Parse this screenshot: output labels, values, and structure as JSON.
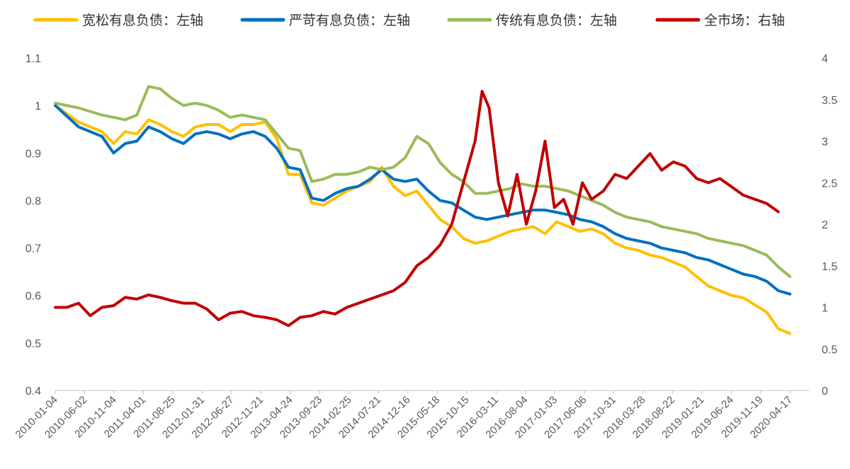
{
  "chart_data": {
    "type": "line",
    "legend_position": "top",
    "grid": false,
    "y_left": {
      "ylim": [
        0.4,
        1.1
      ],
      "ticks": [
        "0.4",
        "0.5",
        "0.6",
        "0.7",
        "0.8",
        "0.9",
        "1",
        "1.1"
      ]
    },
    "y_right": {
      "ylim": [
        0,
        4
      ],
      "ticks": [
        "0",
        "0.5",
        "1",
        "1.5",
        "2",
        "2.5",
        "3",
        "3.5",
        "4"
      ]
    },
    "x_ticks": [
      "2010-01-04",
      "2010-06-02",
      "2010-11-04",
      "2011-04-01",
      "2011-08-25",
      "2012-01-31",
      "2012-06-27",
      "2012-11-21",
      "2013-04-24",
      "2013-09-23",
      "2014-02-25",
      "2014-07-21",
      "2014-12-16",
      "2015-05-18",
      "2015-10-15",
      "2016-03-11",
      "2016-08-04",
      "2017-01-03",
      "2017-06-06",
      "2017-10-31",
      "2018-03-28",
      "2018-08-22",
      "2019-01-21",
      "2019-06-24",
      "2019-11-19",
      "2020-04-17"
    ],
    "series": [
      {
        "name": "宽松有息负债：左轴",
        "axis": "left",
        "color": "#FFC000",
        "points": [
          [
            0,
            1.0
          ],
          [
            1,
            0.965
          ],
          [
            2,
            0.945
          ],
          [
            2.5,
            0.92
          ],
          [
            3,
            0.945
          ],
          [
            3.5,
            0.94
          ],
          [
            4,
            0.97
          ],
          [
            4.5,
            0.96
          ],
          [
            5,
            0.945
          ],
          [
            5.5,
            0.935
          ],
          [
            6,
            0.955
          ],
          [
            6.5,
            0.96
          ],
          [
            7,
            0.96
          ],
          [
            7.5,
            0.945
          ],
          [
            8,
            0.96
          ],
          [
            8.5,
            0.96
          ],
          [
            9,
            0.965
          ],
          [
            9.5,
            0.93
          ],
          [
            10,
            0.855
          ],
          [
            10.5,
            0.855
          ],
          [
            11,
            0.795
          ],
          [
            11.5,
            0.79
          ],
          [
            12,
            0.805
          ],
          [
            12.5,
            0.82
          ],
          [
            13,
            0.83
          ],
          [
            13.5,
            0.84
          ],
          [
            14,
            0.87
          ],
          [
            14.5,
            0.83
          ],
          [
            15,
            0.81
          ],
          [
            15.5,
            0.82
          ],
          [
            16,
            0.79
          ],
          [
            16.5,
            0.76
          ],
          [
            17,
            0.745
          ],
          [
            17.5,
            0.72
          ],
          [
            18,
            0.71
          ],
          [
            18.5,
            0.715
          ],
          [
            19,
            0.725
          ],
          [
            19.5,
            0.735
          ],
          [
            20,
            0.74
          ],
          [
            20.5,
            0.745
          ],
          [
            21,
            0.73
          ],
          [
            21.5,
            0.755
          ],
          [
            22,
            0.745
          ],
          [
            22.5,
            0.735
          ],
          [
            23,
            0.74
          ],
          [
            23.5,
            0.73
          ],
          [
            24,
            0.71
          ],
          [
            24.5,
            0.7
          ],
          [
            25,
            0.695
          ],
          [
            25.5,
            0.685
          ],
          [
            26,
            0.68
          ],
          [
            26.5,
            0.67
          ],
          [
            27,
            0.66
          ],
          [
            27.5,
            0.64
          ],
          [
            28,
            0.62
          ],
          [
            28.5,
            0.61
          ],
          [
            29,
            0.6
          ],
          [
            29.5,
            0.595
          ],
          [
            30,
            0.58
          ],
          [
            30.5,
            0.565
          ],
          [
            31,
            0.53
          ],
          [
            31.5,
            0.52
          ]
        ]
      },
      {
        "name": "严苛有息负债：左轴",
        "axis": "left",
        "color": "#0070C0",
        "points": [
          [
            0,
            1.0
          ],
          [
            1,
            0.955
          ],
          [
            2,
            0.935
          ],
          [
            2.5,
            0.9
          ],
          [
            3,
            0.92
          ],
          [
            3.5,
            0.925
          ],
          [
            4,
            0.955
          ],
          [
            4.5,
            0.945
          ],
          [
            5,
            0.93
          ],
          [
            5.5,
            0.92
          ],
          [
            6,
            0.94
          ],
          [
            6.5,
            0.945
          ],
          [
            7,
            0.94
          ],
          [
            7.5,
            0.93
          ],
          [
            8,
            0.94
          ],
          [
            8.5,
            0.945
          ],
          [
            9,
            0.935
          ],
          [
            9.5,
            0.91
          ],
          [
            10,
            0.87
          ],
          [
            10.5,
            0.865
          ],
          [
            11,
            0.805
          ],
          [
            11.5,
            0.8
          ],
          [
            12,
            0.815
          ],
          [
            12.5,
            0.825
          ],
          [
            13,
            0.83
          ],
          [
            13.5,
            0.845
          ],
          [
            14,
            0.865
          ],
          [
            14.5,
            0.845
          ],
          [
            15,
            0.84
          ],
          [
            15.5,
            0.845
          ],
          [
            16,
            0.82
          ],
          [
            16.5,
            0.8
          ],
          [
            17,
            0.795
          ],
          [
            17.5,
            0.78
          ],
          [
            18,
            0.765
          ],
          [
            18.5,
            0.76
          ],
          [
            19,
            0.765
          ],
          [
            19.5,
            0.77
          ],
          [
            20,
            0.775
          ],
          [
            20.5,
            0.78
          ],
          [
            21,
            0.78
          ],
          [
            21.5,
            0.775
          ],
          [
            22,
            0.77
          ],
          [
            22.5,
            0.76
          ],
          [
            23,
            0.755
          ],
          [
            23.5,
            0.745
          ],
          [
            24,
            0.73
          ],
          [
            24.5,
            0.72
          ],
          [
            25,
            0.715
          ],
          [
            25.5,
            0.71
          ],
          [
            26,
            0.7
          ],
          [
            26.5,
            0.695
          ],
          [
            27,
            0.69
          ],
          [
            27.5,
            0.68
          ],
          [
            28,
            0.675
          ],
          [
            28.5,
            0.665
          ],
          [
            29,
            0.655
          ],
          [
            29.5,
            0.645
          ],
          [
            30,
            0.64
          ],
          [
            30.5,
            0.63
          ],
          [
            31,
            0.61
          ],
          [
            31.5,
            0.603
          ]
        ]
      },
      {
        "name": "传统有息负债：左轴",
        "axis": "left",
        "color": "#9BBB59",
        "points": [
          [
            0,
            1.005
          ],
          [
            1,
            0.995
          ],
          [
            2,
            0.98
          ],
          [
            2.5,
            0.975
          ],
          [
            3,
            0.97
          ],
          [
            3.5,
            0.98
          ],
          [
            4,
            1.04
          ],
          [
            4.5,
            1.035
          ],
          [
            5,
            1.015
          ],
          [
            5.5,
            1.0
          ],
          [
            6,
            1.005
          ],
          [
            6.5,
            1.0
          ],
          [
            7,
            0.99
          ],
          [
            7.5,
            0.975
          ],
          [
            8,
            0.98
          ],
          [
            8.5,
            0.975
          ],
          [
            9,
            0.97
          ],
          [
            9.5,
            0.94
          ],
          [
            10,
            0.91
          ],
          [
            10.5,
            0.905
          ],
          [
            11,
            0.84
          ],
          [
            11.5,
            0.845
          ],
          [
            12,
            0.855
          ],
          [
            12.5,
            0.855
          ],
          [
            13,
            0.86
          ],
          [
            13.5,
            0.87
          ],
          [
            14,
            0.865
          ],
          [
            14.5,
            0.87
          ],
          [
            15,
            0.89
          ],
          [
            15.5,
            0.935
          ],
          [
            16,
            0.92
          ],
          [
            16.5,
            0.88
          ],
          [
            17,
            0.855
          ],
          [
            17.5,
            0.84
          ],
          [
            18,
            0.815
          ],
          [
            18.5,
            0.815
          ],
          [
            19,
            0.82
          ],
          [
            19.5,
            0.825
          ],
          [
            20,
            0.835
          ],
          [
            20.5,
            0.83
          ],
          [
            21,
            0.83
          ],
          [
            21.5,
            0.825
          ],
          [
            22,
            0.82
          ],
          [
            22.5,
            0.81
          ],
          [
            23,
            0.8
          ],
          [
            23.5,
            0.79
          ],
          [
            24,
            0.775
          ],
          [
            24.5,
            0.765
          ],
          [
            25,
            0.76
          ],
          [
            25.5,
            0.755
          ],
          [
            26,
            0.745
          ],
          [
            26.5,
            0.74
          ],
          [
            27,
            0.735
          ],
          [
            27.5,
            0.73
          ],
          [
            28,
            0.72
          ],
          [
            28.5,
            0.715
          ],
          [
            29,
            0.71
          ],
          [
            29.5,
            0.705
          ],
          [
            30,
            0.695
          ],
          [
            30.5,
            0.685
          ],
          [
            31,
            0.66
          ],
          [
            31.5,
            0.64
          ]
        ]
      },
      {
        "name": "全市场：右轴",
        "axis": "right",
        "color": "#C00000",
        "points": [
          [
            0,
            1.0
          ],
          [
            0.5,
            1.0
          ],
          [
            1,
            1.05
          ],
          [
            1.5,
            0.9
          ],
          [
            2,
            1.0
          ],
          [
            2.5,
            1.02
          ],
          [
            3,
            1.12
          ],
          [
            3.5,
            1.1
          ],
          [
            4,
            1.15
          ],
          [
            4.5,
            1.12
          ],
          [
            5,
            1.08
          ],
          [
            5.5,
            1.05
          ],
          [
            6,
            1.05
          ],
          [
            6.5,
            0.98
          ],
          [
            7,
            0.85
          ],
          [
            7.5,
            0.93
          ],
          [
            8,
            0.95
          ],
          [
            8.5,
            0.9
          ],
          [
            9,
            0.88
          ],
          [
            9.5,
            0.85
          ],
          [
            10,
            0.78
          ],
          [
            10.5,
            0.88
          ],
          [
            11,
            0.9
          ],
          [
            11.5,
            0.95
          ],
          [
            12,
            0.92
          ],
          [
            12.5,
            1.0
          ],
          [
            13,
            1.05
          ],
          [
            13.5,
            1.1
          ],
          [
            14,
            1.15
          ],
          [
            14.5,
            1.2
          ],
          [
            15,
            1.3
          ],
          [
            15.5,
            1.5
          ],
          [
            16,
            1.6
          ],
          [
            16.5,
            1.75
          ],
          [
            17,
            2.0
          ],
          [
            17.5,
            2.5
          ],
          [
            18,
            3.0
          ],
          [
            18.3,
            3.6
          ],
          [
            18.6,
            3.4
          ],
          [
            19,
            2.5
          ],
          [
            19.4,
            2.1
          ],
          [
            19.8,
            2.6
          ],
          [
            20.2,
            2.0
          ],
          [
            20.6,
            2.4
          ],
          [
            21,
            3.0
          ],
          [
            21.4,
            2.2
          ],
          [
            21.8,
            2.3
          ],
          [
            22.2,
            2.0
          ],
          [
            22.6,
            2.5
          ],
          [
            23,
            2.3
          ],
          [
            23.5,
            2.4
          ],
          [
            24,
            2.6
          ],
          [
            24.5,
            2.55
          ],
          [
            25,
            2.7
          ],
          [
            25.5,
            2.85
          ],
          [
            26,
            2.65
          ],
          [
            26.5,
            2.75
          ],
          [
            27,
            2.7
          ],
          [
            27.5,
            2.55
          ],
          [
            28,
            2.5
          ],
          [
            28.5,
            2.55
          ],
          [
            29,
            2.45
          ],
          [
            29.5,
            2.35
          ],
          [
            30,
            2.3
          ],
          [
            30.5,
            2.25
          ],
          [
            31,
            2.15
          ]
        ]
      }
    ]
  }
}
